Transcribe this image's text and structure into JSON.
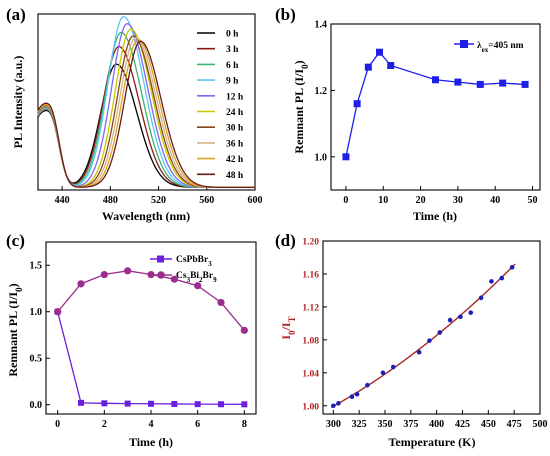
{
  "chart_data": [
    {
      "panel": "(a)",
      "type": "line",
      "xlabel": "Wavelength (nm)",
      "ylabel": "PL Intensity (a.u.)",
      "xlim": [
        420,
        600
      ],
      "xticks": [
        440,
        480,
        520,
        560,
        600
      ],
      "series": [
        {
          "name": "0 h",
          "color": "#000000",
          "peak": 485,
          "height": 0.7
        },
        {
          "name": "3 h",
          "color": "#8B1A1A",
          "peak": 487,
          "height": 0.8
        },
        {
          "name": "6 h",
          "color": "#3CB371",
          "peak": 489,
          "height": 0.88
        },
        {
          "name": "9 h",
          "color": "#5BC8F5",
          "peak": 491,
          "height": 0.97
        },
        {
          "name": "12 h",
          "color": "#7B68EE",
          "peak": 494,
          "height": 0.93
        },
        {
          "name": "24 h",
          "color": "#C8C800",
          "peak": 497,
          "height": 0.9
        },
        {
          "name": "30 h",
          "color": "#8B4513",
          "peak": 499,
          "height": 0.86
        },
        {
          "name": "36 h",
          "color": "#D2B48C",
          "peak": 501,
          "height": 0.85
        },
        {
          "name": "42 h",
          "color": "#DAA520",
          "peak": 503,
          "height": 0.84
        },
        {
          "name": "48 h",
          "color": "#6B1A1A",
          "peak": 505,
          "height": 0.83
        }
      ]
    },
    {
      "panel": "(b)",
      "type": "line",
      "xlabel": "Time (h)",
      "ylabel": "Remnant PL (I/I",
      "ylabel_sub": "0",
      "xlim": [
        -4,
        52
      ],
      "ylim": [
        0.9,
        1.4
      ],
      "xticks": [
        0,
        10,
        20,
        30,
        40,
        50
      ],
      "yticks": [
        1.0,
        1.2,
        1.4
      ],
      "legend_prefix": "λ",
      "legend_sub": "ex",
      "legend_rest": "=405 nm",
      "x": [
        0,
        3,
        6,
        9,
        12,
        24,
        30,
        36,
        42,
        48
      ],
      "y": [
        1.0,
        1.16,
        1.27,
        1.315,
        1.275,
        1.232,
        1.225,
        1.218,
        1.222,
        1.218
      ],
      "color": "#1E1EE6"
    },
    {
      "panel": "(c)",
      "type": "line",
      "xlabel": "Time (h)",
      "ylabel": "Remnant PL (I/I",
      "ylabel_sub": "0",
      "xlim": [
        -0.5,
        8.5
      ],
      "ylim": [
        -0.1,
        1.75
      ],
      "xticks": [
        0,
        2,
        4,
        6,
        8
      ],
      "yticks": [
        0.0,
        0.5,
        1.0,
        1.5
      ],
      "series": [
        {
          "name": "CsPbBr",
          "sub": "3",
          "rest": "",
          "color": "#6A1FE0",
          "x": [
            0,
            1,
            2,
            3,
            4,
            5,
            6,
            7,
            8
          ],
          "y": [
            1.0,
            0.02,
            0.015,
            0.012,
            0.01,
            0.008,
            0.006,
            0.005,
            0.004
          ]
        },
        {
          "name": "Cs",
          "sub": "3",
          "rest": "Bi",
          "sub2": "2",
          "rest2": "Br",
          "sub3": "9",
          "color": "#9B2D8E",
          "x": [
            0,
            1,
            2,
            3,
            4,
            5,
            6,
            7,
            8
          ],
          "y": [
            1.0,
            1.3,
            1.4,
            1.44,
            1.4,
            1.35,
            1.28,
            1.1,
            0.8
          ]
        }
      ]
    },
    {
      "panel": "(d)",
      "type": "scatter",
      "xlabel": "Temperature (K)",
      "ylabel": "I",
      "ylabel_sub0": "0",
      "ylabel_mid": "/I",
      "ylabel_sub1": "T",
      "xlim": [
        290,
        500
      ],
      "ylim": [
        0.99,
        1.2
      ],
      "xticks": [
        300,
        325,
        350,
        375,
        400,
        425,
        450,
        475,
        500
      ],
      "yticks": [
        "1.00",
        "1.04",
        "1.08",
        "1.12",
        "1.16",
        "1.20"
      ],
      "x": [
        300,
        305,
        318,
        323,
        333,
        348,
        358,
        383,
        393,
        403,
        413,
        423,
        433,
        443,
        453,
        463,
        473
      ],
      "y": [
        1.0,
        1.003,
        1.011,
        1.014,
        1.025,
        1.04,
        1.047,
        1.065,
        1.079,
        1.089,
        1.104,
        1.108,
        1.113,
        1.131,
        1.151,
        1.155,
        1.168
      ],
      "fit_color": "#A52A2A",
      "marker_color": "#1E1EB4"
    }
  ]
}
